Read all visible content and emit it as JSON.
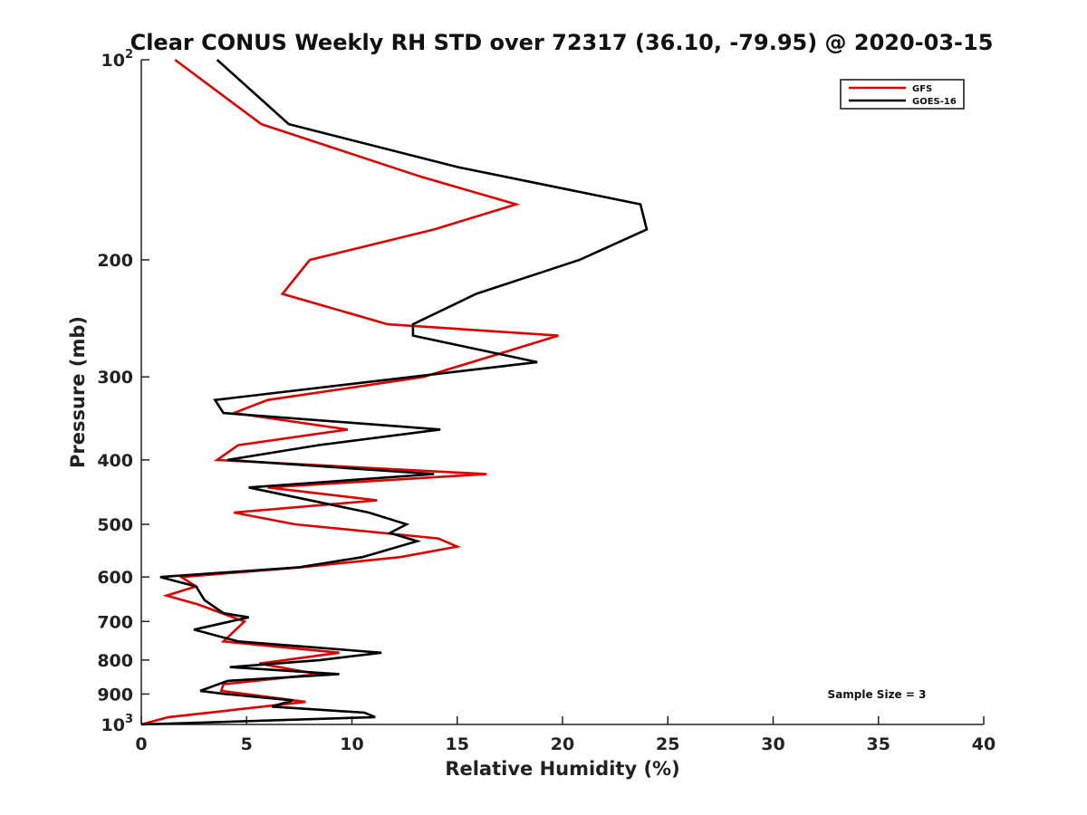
{
  "chart_data": {
    "type": "line",
    "title": "Clear CONUS Weekly RH STD over 72317 (36.10, -79.95) @ 2020-03-15",
    "xlabel": "Relative Humidity (%)",
    "ylabel": "Pressure (mb)",
    "xlim": [
      0,
      40
    ],
    "ylim": [
      100,
      1000
    ],
    "y_scale": "log",
    "y_reversed": true,
    "x_ticks": [
      "0",
      "5",
      "10",
      "15",
      "20",
      "25",
      "30",
      "35",
      "40"
    ],
    "y_ticks": [
      {
        "value": 100,
        "base": "10",
        "exp": "2"
      },
      {
        "value": 200,
        "label": "200"
      },
      {
        "value": 300,
        "label": "300"
      },
      {
        "value": 400,
        "label": "400"
      },
      {
        "value": 500,
        "label": "500"
      },
      {
        "value": 600,
        "label": "600"
      },
      {
        "value": 700,
        "label": "700"
      },
      {
        "value": 800,
        "label": "800"
      },
      {
        "value": 900,
        "label": "900"
      },
      {
        "value": 1000,
        "base": "10",
        "exp": "3"
      }
    ],
    "legend_position": "top-right",
    "grid": false,
    "series": [
      {
        "name": "GFS",
        "color": "#e00000",
        "points": [
          {
            "rh": 1.6,
            "p": 100
          },
          {
            "rh": 5.7,
            "p": 125
          },
          {
            "rh": 13.3,
            "p": 150
          },
          {
            "rh": 17.8,
            "p": 165
          },
          {
            "rh": 13.9,
            "p": 180
          },
          {
            "rh": 8.0,
            "p": 200
          },
          {
            "rh": 6.7,
            "p": 225
          },
          {
            "rh": 11.7,
            "p": 250
          },
          {
            "rh": 19.8,
            "p": 260
          },
          {
            "rh": 17.3,
            "p": 275
          },
          {
            "rh": 13.4,
            "p": 300
          },
          {
            "rh": 6.0,
            "p": 325
          },
          {
            "rh": 4.4,
            "p": 340
          },
          {
            "rh": 9.8,
            "p": 360
          },
          {
            "rh": 4.6,
            "p": 380
          },
          {
            "rh": 3.6,
            "p": 400
          },
          {
            "rh": 16.4,
            "p": 420
          },
          {
            "rh": 6.0,
            "p": 440
          },
          {
            "rh": 11.2,
            "p": 460
          },
          {
            "rh": 4.4,
            "p": 480
          },
          {
            "rh": 7.3,
            "p": 500
          },
          {
            "rh": 14.1,
            "p": 525
          },
          {
            "rh": 15.0,
            "p": 540
          },
          {
            "rh": 12.3,
            "p": 560
          },
          {
            "rh": 7.6,
            "p": 580
          },
          {
            "rh": 1.9,
            "p": 600
          },
          {
            "rh": 2.6,
            "p": 620
          },
          {
            "rh": 1.2,
            "p": 640
          },
          {
            "rh": 2.7,
            "p": 660
          },
          {
            "rh": 4.9,
            "p": 700
          },
          {
            "rh": 3.9,
            "p": 750
          },
          {
            "rh": 9.4,
            "p": 780
          },
          {
            "rh": 5.6,
            "p": 810
          },
          {
            "rh": 8.4,
            "p": 840
          },
          {
            "rh": 3.9,
            "p": 870
          },
          {
            "rh": 3.8,
            "p": 890
          },
          {
            "rh": 7.8,
            "p": 925
          },
          {
            "rh": 1.3,
            "p": 975
          },
          {
            "rh": 0.0,
            "p": 1000
          }
        ]
      },
      {
        "name": "GOES-16",
        "color": "#000000",
        "points": [
          {
            "rh": 3.6,
            "p": 100
          },
          {
            "rh": 7.0,
            "p": 125
          },
          {
            "rh": 15.0,
            "p": 145
          },
          {
            "rh": 23.7,
            "p": 165
          },
          {
            "rh": 24.0,
            "p": 180
          },
          {
            "rh": 20.8,
            "p": 200
          },
          {
            "rh": 15.9,
            "p": 225
          },
          {
            "rh": 12.9,
            "p": 250
          },
          {
            "rh": 12.9,
            "p": 260
          },
          {
            "rh": 18.8,
            "p": 285
          },
          {
            "rh": 3.5,
            "p": 325
          },
          {
            "rh": 3.9,
            "p": 340
          },
          {
            "rh": 14.2,
            "p": 360
          },
          {
            "rh": 8.4,
            "p": 380
          },
          {
            "rh": 4.1,
            "p": 400
          },
          {
            "rh": 13.9,
            "p": 420
          },
          {
            "rh": 5.1,
            "p": 440
          },
          {
            "rh": 10.8,
            "p": 480
          },
          {
            "rh": 12.6,
            "p": 500
          },
          {
            "rh": 11.8,
            "p": 515
          },
          {
            "rh": 13.1,
            "p": 530
          },
          {
            "rh": 10.5,
            "p": 560
          },
          {
            "rh": 7.5,
            "p": 580
          },
          {
            "rh": 0.9,
            "p": 600
          },
          {
            "rh": 2.6,
            "p": 620
          },
          {
            "rh": 3.0,
            "p": 650
          },
          {
            "rh": 3.9,
            "p": 680
          },
          {
            "rh": 5.1,
            "p": 690
          },
          {
            "rh": 2.5,
            "p": 720
          },
          {
            "rh": 4.6,
            "p": 750
          },
          {
            "rh": 11.4,
            "p": 780
          },
          {
            "rh": 8.5,
            "p": 800
          },
          {
            "rh": 4.2,
            "p": 820
          },
          {
            "rh": 9.4,
            "p": 840
          },
          {
            "rh": 4.1,
            "p": 860
          },
          {
            "rh": 2.8,
            "p": 890
          },
          {
            "rh": 4.0,
            "p": 900
          },
          {
            "rh": 7.2,
            "p": 920
          },
          {
            "rh": 6.2,
            "p": 940
          },
          {
            "rh": 10.6,
            "p": 960
          },
          {
            "rh": 11.1,
            "p": 975
          },
          {
            "rh": 0.0,
            "p": 1000
          }
        ]
      }
    ],
    "annotation": "Sample Size = 3"
  }
}
